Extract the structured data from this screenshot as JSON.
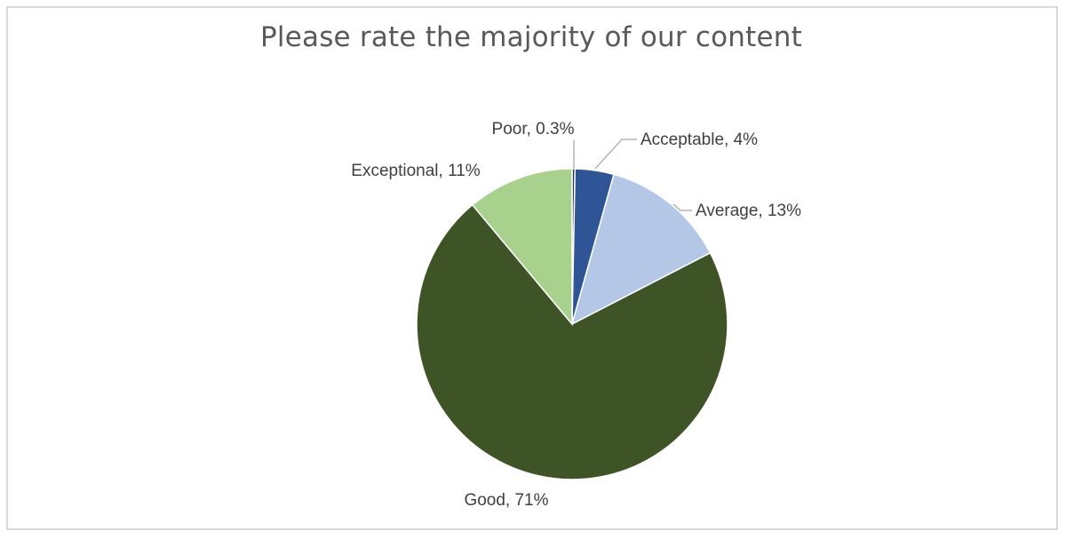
{
  "chart_data": {
    "type": "pie",
    "title": "Please rate the majority of our content",
    "slices": [
      {
        "name": "Poor",
        "value": 0.3,
        "label": "Poor, 0.3%",
        "color": "#1f3864"
      },
      {
        "name": "Acceptable",
        "value": 4,
        "label": "Acceptable, 4%",
        "color": "#2f5597"
      },
      {
        "name": "Average",
        "value": 13,
        "label": "Average, 13%",
        "color": "#b4c7e7"
      },
      {
        "name": "Good",
        "value": 71,
        "label": "Good, 71%",
        "color": "#3e5427"
      },
      {
        "name": "Exceptional",
        "value": 11,
        "label": "Exceptional, 11%",
        "color": "#a9d18e"
      }
    ],
    "legend": false
  }
}
